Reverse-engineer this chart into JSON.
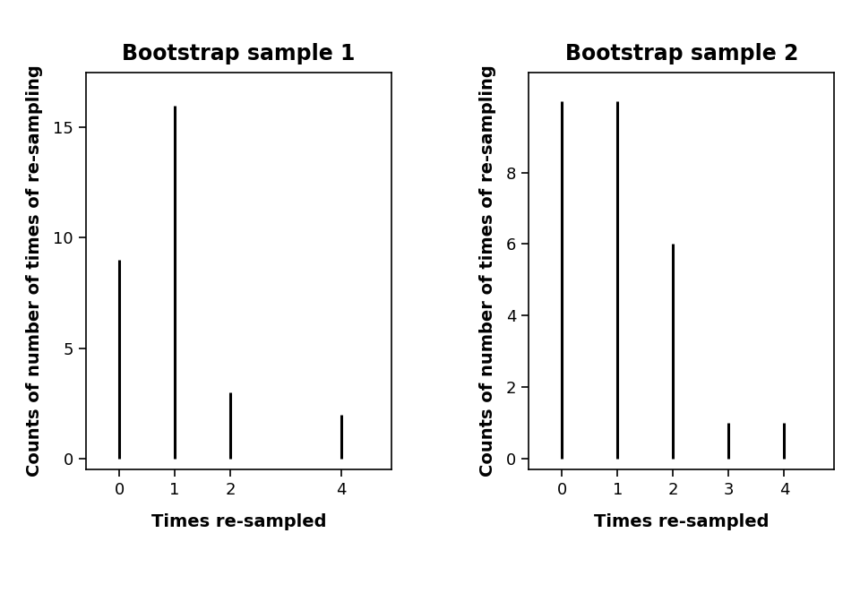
{
  "plot1": {
    "title": "Bootstrap sample 1",
    "x": [
      0,
      1,
      2,
      4
    ],
    "y": [
      9,
      16,
      3,
      2
    ],
    "xlim": [
      -0.6,
      4.9
    ],
    "ylim": [
      -0.5,
      17.5
    ],
    "yticks": [
      0,
      5,
      10,
      15
    ],
    "xticks": [
      0,
      1,
      2,
      4
    ],
    "xlabel": "Times re-sampled",
    "ylabel": "Counts of number of times of re-sampling"
  },
  "plot2": {
    "title": "Bootstrap sample 2",
    "x": [
      0,
      1,
      2,
      3,
      4
    ],
    "y": [
      10,
      10,
      6,
      1,
      1
    ],
    "xlim": [
      -0.6,
      4.9
    ],
    "ylim": [
      -0.3,
      10.8
    ],
    "yticks": [
      0,
      2,
      4,
      6,
      8
    ],
    "xticks": [
      0,
      1,
      2,
      3,
      4
    ],
    "xlabel": "Times re-sampled",
    "ylabel": "Counts of number of times of re-sampling"
  },
  "background_color": "#ffffff",
  "line_color": "#000000",
  "title_fontsize": 17,
  "label_fontsize": 14,
  "tick_fontsize": 13,
  "linewidth": 2.2
}
